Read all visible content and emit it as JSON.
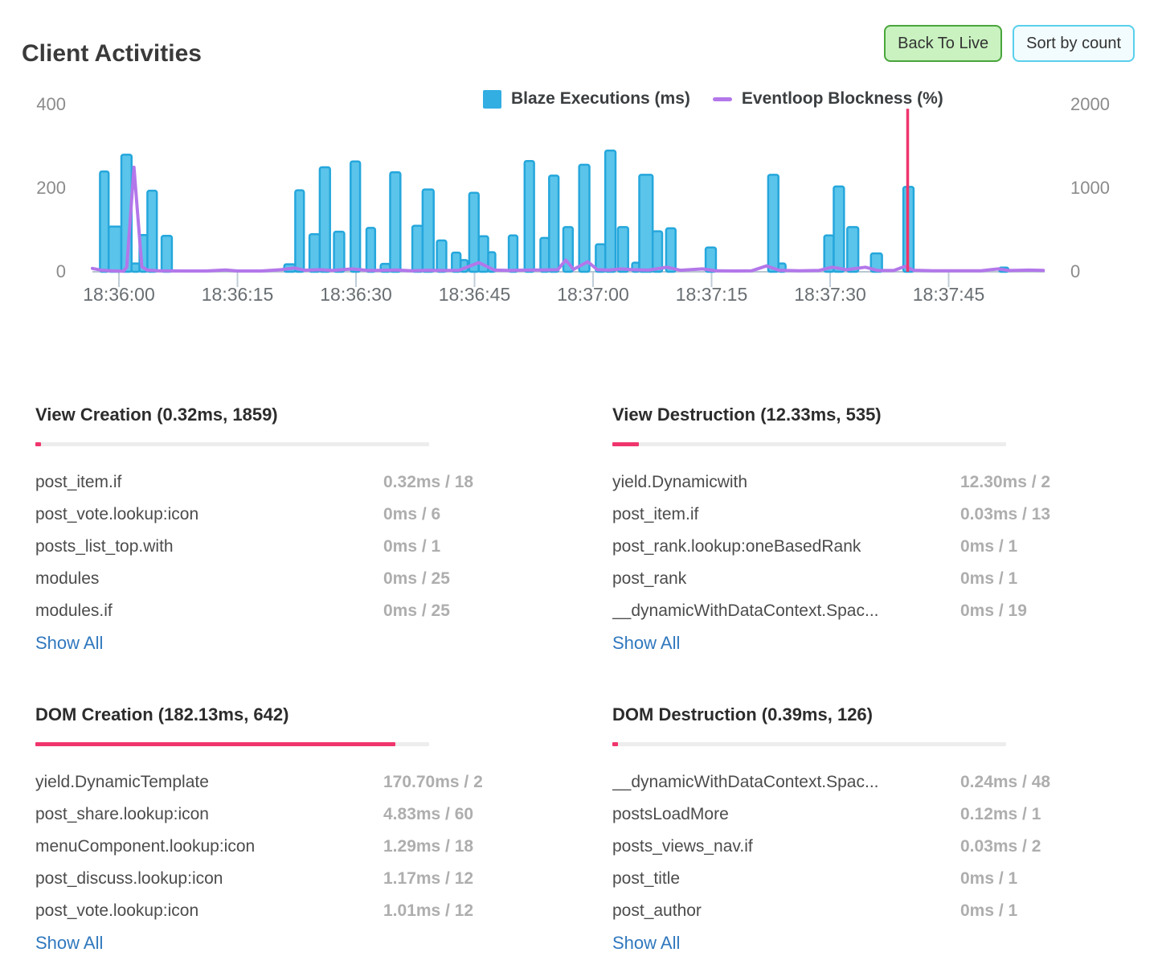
{
  "header": {
    "title": "Client Activities",
    "back_to_live_label": "Back To Live",
    "sort_by_count_label": "Sort by count"
  },
  "colors": {
    "bar_fill": "#5bc4ea",
    "bar_stroke": "#25a7dc",
    "eventloop_line": "#b377ea",
    "spike": "#f0356d",
    "progress_fill": "#f0356d",
    "progress_track": "#ededed",
    "link": "#3078be",
    "baseline": "#b9c6d2",
    "tick": "#bfcdd8",
    "legend_swatch_blue": "#32aee3",
    "legend_dash_purple": "#b377ea",
    "button_green_bg": "#c9f2c0",
    "button_green_border": "#4aa53c",
    "button_cyan_bg": "#f2fbfe",
    "button_cyan_border": "#58d0ec"
  },
  "chart_data": {
    "type": "bar+line",
    "title": "Client Activities",
    "series_labels": {
      "blaze": "Blaze Executions (ms)",
      "eventloop": "Eventloop Blockness (%)"
    },
    "y_left": {
      "label": "Blaze Executions (ms)",
      "range": [
        0,
        400
      ],
      "tick_labels_top_down": [
        "400",
        "200",
        "0"
      ]
    },
    "y_right": {
      "label": "Eventloop Blockness (%)",
      "range": [
        0,
        2000
      ],
      "tick_labels_top_down": [
        "2000",
        "1000",
        "0"
      ]
    },
    "x_axis": {
      "tick_labels": [
        "18:36:00",
        "18:36:15",
        "18:36:30",
        "18:36:45",
        "18:37:00",
        "18:37:15",
        "18:37:30",
        "18:37:45"
      ],
      "tick_interval_s": 15,
      "grid": false,
      "legend_position": "top"
    },
    "blaze_bars_t_w_ms": [
      {
        "t": -2.4,
        "w": 1.1,
        "ms": 240
      },
      {
        "t": -1.3,
        "w": 1.6,
        "ms": 108
      },
      {
        "t": 0.3,
        "w": 1.3,
        "ms": 280
      },
      {
        "t": 1.6,
        "w": 1.0,
        "ms": 20
      },
      {
        "t": 2.6,
        "w": 1.0,
        "ms": 88
      },
      {
        "t": 3.6,
        "w": 1.2,
        "ms": 194
      },
      {
        "t": 5.4,
        "w": 1.3,
        "ms": 86
      },
      {
        "t": 20.9,
        "w": 1.4,
        "ms": 18
      },
      {
        "t": 22.3,
        "w": 1.1,
        "ms": 195
      },
      {
        "t": 24.1,
        "w": 1.3,
        "ms": 90
      },
      {
        "t": 25.4,
        "w": 1.3,
        "ms": 250
      },
      {
        "t": 27.2,
        "w": 1.3,
        "ms": 96
      },
      {
        "t": 29.3,
        "w": 1.2,
        "ms": 264
      },
      {
        "t": 31.3,
        "w": 1.1,
        "ms": 105
      },
      {
        "t": 33.1,
        "w": 1.2,
        "ms": 19
      },
      {
        "t": 34.3,
        "w": 1.3,
        "ms": 238
      },
      {
        "t": 37.1,
        "w": 1.3,
        "ms": 110
      },
      {
        "t": 38.4,
        "w": 1.4,
        "ms": 197
      },
      {
        "t": 40.2,
        "w": 1.2,
        "ms": 75
      },
      {
        "t": 42.1,
        "w": 1.1,
        "ms": 46
      },
      {
        "t": 43.2,
        "w": 0.9,
        "ms": 28
      },
      {
        "t": 44.3,
        "w": 1.2,
        "ms": 189
      },
      {
        "t": 45.5,
        "w": 1.2,
        "ms": 85
      },
      {
        "t": 46.7,
        "w": 0.9,
        "ms": 47
      },
      {
        "t": 49.3,
        "w": 1.1,
        "ms": 87
      },
      {
        "t": 51.3,
        "w": 1.2,
        "ms": 265
      },
      {
        "t": 53.3,
        "w": 1.1,
        "ms": 81
      },
      {
        "t": 54.4,
        "w": 1.2,
        "ms": 230
      },
      {
        "t": 56.2,
        "w": 1.2,
        "ms": 107
      },
      {
        "t": 58.2,
        "w": 1.3,
        "ms": 256
      },
      {
        "t": 60.3,
        "w": 1.2,
        "ms": 66
      },
      {
        "t": 61.5,
        "w": 1.3,
        "ms": 290
      },
      {
        "t": 63.1,
        "w": 1.3,
        "ms": 107
      },
      {
        "t": 64.9,
        "w": 0.9,
        "ms": 22
      },
      {
        "t": 65.8,
        "w": 1.7,
        "ms": 232
      },
      {
        "t": 67.5,
        "w": 1.2,
        "ms": 97
      },
      {
        "t": 69.2,
        "w": 1.2,
        "ms": 104
      },
      {
        "t": 74.2,
        "w": 1.3,
        "ms": 58
      },
      {
        "t": 82.1,
        "w": 1.3,
        "ms": 232
      },
      {
        "t": 83.4,
        "w": 0.9,
        "ms": 20
      },
      {
        "t": 89.2,
        "w": 1.2,
        "ms": 87
      },
      {
        "t": 90.4,
        "w": 1.3,
        "ms": 204
      },
      {
        "t": 92.1,
        "w": 1.4,
        "ms": 107
      },
      {
        "t": 95.1,
        "w": 1.4,
        "ms": 44
      },
      {
        "t": 99.2,
        "w": 1.3,
        "ms": 203
      },
      {
        "t": 111.3,
        "w": 1.2,
        "ms": 10
      }
    ],
    "eventloop_line_t_pct": [
      [
        -3.35,
        40
      ],
      [
        -2.2,
        18
      ],
      [
        -1.0,
        12
      ],
      [
        0.6,
        8
      ],
      [
        1.0,
        60
      ],
      [
        1.9,
        1250
      ],
      [
        2.9,
        60
      ],
      [
        3.6,
        20
      ],
      [
        5,
        12
      ],
      [
        8,
        10
      ],
      [
        11,
        10
      ],
      [
        13.5,
        22
      ],
      [
        15,
        10
      ],
      [
        18,
        10
      ],
      [
        20.5,
        25
      ],
      [
        22.2,
        45
      ],
      [
        23.5,
        18
      ],
      [
        25.5,
        25
      ],
      [
        27,
        15
      ],
      [
        29.5,
        35
      ],
      [
        31.5,
        15
      ],
      [
        33.5,
        18
      ],
      [
        35,
        22
      ],
      [
        37,
        12
      ],
      [
        39,
        18
      ],
      [
        41,
        15
      ],
      [
        43,
        18
      ],
      [
        45.5,
        110
      ],
      [
        47.5,
        20
      ],
      [
        49.5,
        15
      ],
      [
        51.5,
        20
      ],
      [
        53.5,
        22
      ],
      [
        55.5,
        25
      ],
      [
        56.5,
        140
      ],
      [
        57.5,
        30
      ],
      [
        59.3,
        120
      ],
      [
        60.5,
        25
      ],
      [
        62,
        20
      ],
      [
        63.5,
        35
      ],
      [
        65,
        25
      ],
      [
        67,
        20
      ],
      [
        69.3,
        55
      ],
      [
        71,
        18
      ],
      [
        73.8,
        35
      ],
      [
        75.5,
        12
      ],
      [
        78,
        10
      ],
      [
        80,
        12
      ],
      [
        81.9,
        70
      ],
      [
        83.5,
        18
      ],
      [
        86,
        12
      ],
      [
        88.5,
        15
      ],
      [
        90.2,
        55
      ],
      [
        92,
        25
      ],
      [
        94.4,
        55
      ],
      [
        96,
        15
      ],
      [
        98,
        15
      ],
      [
        99.4,
        65
      ],
      [
        100.5,
        18
      ],
      [
        103,
        12
      ],
      [
        106,
        12
      ],
      [
        109,
        12
      ],
      [
        111.2,
        35
      ],
      [
        112.5,
        15
      ],
      [
        115,
        20
      ],
      [
        116.9,
        16
      ]
    ],
    "spike_marker": {
      "t": 99.75,
      "pct": 1950
    }
  },
  "panels": [
    {
      "title": "View Creation (0.32ms, 1859)",
      "progress_pct": 1.4,
      "rows": [
        {
          "name": "post_item.if",
          "value": "0.32ms / 18"
        },
        {
          "name": "post_vote.lookup:icon",
          "value": "0ms / 6"
        },
        {
          "name": "posts_list_top.with",
          "value": "0ms / 1"
        },
        {
          "name": "modules",
          "value": "0ms / 25"
        },
        {
          "name": "modules.if",
          "value": "0ms / 25"
        }
      ],
      "show_all_label": "Show All"
    },
    {
      "title": "View Destruction (12.33ms, 535)",
      "progress_pct": 6.7,
      "rows": [
        {
          "name": "yield.Dynamicwith",
          "value": "12.30ms / 2"
        },
        {
          "name": "post_item.if",
          "value": "0.03ms / 13"
        },
        {
          "name": "post_rank.lookup:oneBasedRank",
          "value": "0ms / 1"
        },
        {
          "name": "post_rank",
          "value": "0ms / 1"
        },
        {
          "name": "__dynamicWithDataContext.Spac...",
          "value": "0ms / 19"
        }
      ],
      "show_all_label": "Show All"
    },
    {
      "title": "DOM Creation (182.13ms, 642)",
      "progress_pct": 91.4,
      "rows": [
        {
          "name": "yield.DynamicTemplate",
          "value": "170.70ms / 2"
        },
        {
          "name": "post_share.lookup:icon",
          "value": "4.83ms / 60"
        },
        {
          "name": "menuComponent.lookup:icon",
          "value": "1.29ms / 18"
        },
        {
          "name": "post_discuss.lookup:icon",
          "value": "1.17ms / 12"
        },
        {
          "name": "post_vote.lookup:icon",
          "value": "1.01ms / 12"
        }
      ],
      "show_all_label": "Show All"
    },
    {
      "title": "DOM Destruction (0.39ms, 126)",
      "progress_pct": 1.4,
      "rows": [
        {
          "name": "__dynamicWithDataContext.Spac...",
          "value": "0.24ms / 48"
        },
        {
          "name": "postsLoadMore",
          "value": "0.12ms / 1"
        },
        {
          "name": "posts_views_nav.if",
          "value": "0.03ms / 2"
        },
        {
          "name": "post_title",
          "value": "0ms / 1"
        },
        {
          "name": "post_author",
          "value": "0ms / 1"
        }
      ],
      "show_all_label": "Show All"
    }
  ]
}
